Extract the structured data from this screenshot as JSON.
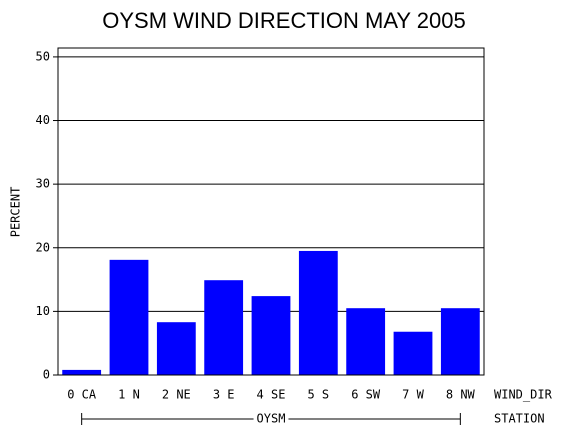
{
  "chart_data": {
    "type": "bar",
    "title": "OYSM WIND DIRECTION MAY 2005",
    "ylabel": "PERCENT",
    "xlabel": "WIND_DIR",
    "group_label": "OYSM",
    "group_axis_label": "STATION",
    "categories": [
      "0 CA",
      "1 N",
      "2 NE",
      "3 E",
      "4 SE",
      "5 S",
      "6 SW",
      "7 W",
      "8 NW"
    ],
    "values": [
      0.8,
      18.1,
      8.3,
      14.9,
      12.4,
      19.5,
      10.5,
      6.8,
      10.5
    ],
    "color": "#0000ff",
    "ylim": [
      0,
      51.4
    ],
    "yticks": [
      0,
      10,
      20,
      30,
      40,
      50
    ],
    "grid": true
  }
}
